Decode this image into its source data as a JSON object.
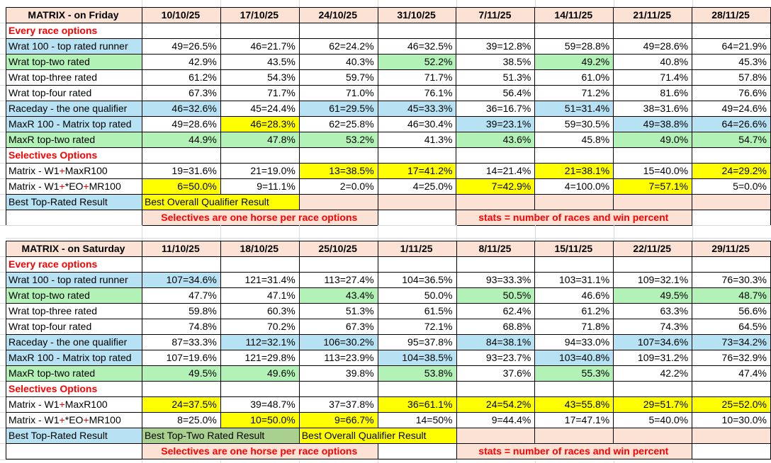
{
  "colors": {
    "peach": "#fbe2d5",
    "blue": "#b7e2f4",
    "green": "#b2f2b6",
    "dark_green": "#a9d08e",
    "yellow": "#ffff00",
    "red": "#ff0000",
    "black": "#000000",
    "gridline": "#d9d9d9"
  },
  "layout_note": "",
  "tables": [
    {
      "title": "MATRIX - on Friday",
      "dates": [
        "10/10/25",
        "17/10/25",
        "24/10/25",
        "31/10/25",
        "7/11/25",
        "14/11/25",
        "21/11/25",
        "28/11/25"
      ],
      "rows": [
        {
          "section": "Every race options"
        },
        {
          "label": "Wrat 100 - top rated runner",
          "lb": "b",
          "cells": [
            [
              "49=26.5%",
              "w"
            ],
            [
              "46=21.7%",
              "w"
            ],
            [
              "62=24.2%",
              "w"
            ],
            [
              "46=32.5%",
              "w"
            ],
            [
              "39=12.8%",
              "w"
            ],
            [
              "59=28.8%",
              "w"
            ],
            [
              "49=28.6%",
              "w"
            ],
            [
              "64=21.9%",
              "w"
            ]
          ]
        },
        {
          "label": "Wrat top-two rated",
          "lb": "g",
          "cells": [
            [
              "42.9%",
              "w"
            ],
            [
              "43.5%",
              "w"
            ],
            [
              "40.3%",
              "w"
            ],
            [
              "52.2%",
              "g"
            ],
            [
              "38.5%",
              "w"
            ],
            [
              "49.2%",
              "g"
            ],
            [
              "40.8%",
              "w"
            ],
            [
              "45.3%",
              "w"
            ]
          ]
        },
        {
          "label": "Wrat top-three rated",
          "lb": "w",
          "cells": [
            [
              "61.2%",
              "w"
            ],
            [
              "54.3%",
              "w"
            ],
            [
              "59.7%",
              "w"
            ],
            [
              "71.7%",
              "w"
            ],
            [
              "51.3%",
              "w"
            ],
            [
              "61.0%",
              "w"
            ],
            [
              "71.4%",
              "w"
            ],
            [
              "57.8%",
              "w"
            ]
          ]
        },
        {
          "label": "Wrat top-four rated",
          "lb": "w",
          "cells": [
            [
              "67.3%",
              "w"
            ],
            [
              "71.7%",
              "w"
            ],
            [
              "71.0%",
              "w"
            ],
            [
              "76.1%",
              "w"
            ],
            [
              "56.4%",
              "w"
            ],
            [
              "71.2%",
              "w"
            ],
            [
              "81.6%",
              "w"
            ],
            [
              "76.6%",
              "w"
            ]
          ]
        },
        {
          "label": "Raceday - the one qualifier",
          "lb": "b",
          "cells": [
            [
              "46=32.6%",
              "b"
            ],
            [
              "45=24.4%",
              "w"
            ],
            [
              "61=29.5%",
              "b"
            ],
            [
              "45=33.3%",
              "b"
            ],
            [
              "36=16.7%",
              "w"
            ],
            [
              "51=31.4%",
              "b"
            ],
            [
              "38=31.6%",
              "w"
            ],
            [
              "49=24.6%",
              "w"
            ]
          ]
        },
        {
          "label": "MaxR 100 - Matrix top rated",
          "lb": "b",
          "cells": [
            [
              "49=28.6%",
              "w"
            ],
            [
              "46=28.3%",
              "y"
            ],
            [
              "62=25.8%",
              "w"
            ],
            [
              "46=30.4%",
              "w"
            ],
            [
              "39=23.1%",
              "b"
            ],
            [
              "59=30.5%",
              "w"
            ],
            [
              "49=38.8%",
              "b"
            ],
            [
              "64=26.6%",
              "b"
            ]
          ]
        },
        {
          "label": "MaxR top-two rated",
          "lb": "g",
          "cells": [
            [
              "44.9%",
              "g"
            ],
            [
              "47.8%",
              "g"
            ],
            [
              "53.2%",
              "g"
            ],
            [
              "41.3%",
              "w"
            ],
            [
              "43.6%",
              "g"
            ],
            [
              "45.8%",
              "w"
            ],
            [
              "49.0%",
              "g"
            ],
            [
              "54.7%",
              "g"
            ]
          ]
        },
        {
          "section": "Selectives Options"
        },
        {
          "label": "Matrix - W1+MaxR100",
          "rp": true,
          "lb": "w",
          "cells": [
            [
              "19=31.6%",
              "w"
            ],
            [
              "21=19.0%",
              "w"
            ],
            [
              "13=38.5%",
              "y"
            ],
            [
              "17=41.2%",
              "y"
            ],
            [
              "14=21.4%",
              "w"
            ],
            [
              "21=38.1%",
              "y"
            ],
            [
              "15=40.0%",
              "w"
            ],
            [
              "24=29.2%",
              "y"
            ]
          ]
        },
        {
          "label": "Matrix - W1+*EO+MR100",
          "rp": true,
          "lb": "w",
          "cells": [
            [
              "6=50.0%",
              "y"
            ],
            [
              "9=11.1%",
              "w"
            ],
            [
              "2=0.0%",
              "w"
            ],
            [
              "4=25.0%",
              "w"
            ],
            [
              "7=42.9%",
              "y"
            ],
            [
              "4=100.0%",
              "w"
            ],
            [
              "7=57.1%",
              "y"
            ],
            [
              "5=0.0%",
              "w"
            ]
          ]
        }
      ],
      "result": {
        "label": "Best Top-Rated Result",
        "merged": [
          {
            "text": "Best Overall Qualifier Result",
            "bg": "y",
            "span": 2
          }
        ],
        "peach_cells": 6
      },
      "notes": [
        "Selectives are one horse per race options",
        "stats = number of races and win percent"
      ]
    },
    {
      "title": "MATRIX - on Saturday",
      "dates": [
        "11/10/25",
        "18/10/25",
        "25/10/25",
        "1/11/25",
        "8/11/25",
        "15/11/25",
        "22/11/25",
        "29/11/25"
      ],
      "rows": [
        {
          "section": "Every race options"
        },
        {
          "label": "Wrat 100 - top rated runner",
          "lb": "b",
          "cells": [
            [
              "107=34.6%",
              "b"
            ],
            [
              "121=31.4%",
              "w"
            ],
            [
              "113=27.4%",
              "w"
            ],
            [
              "104=36.5%",
              "w"
            ],
            [
              "93=33.3%",
              "w"
            ],
            [
              "103=31.1%",
              "w"
            ],
            [
              "109=32.1%",
              "w"
            ],
            [
              "76=30.3%",
              "w"
            ]
          ]
        },
        {
          "label": "Wrat top-two rated",
          "lb": "g",
          "cells": [
            [
              "47.7%",
              "w"
            ],
            [
              "47.1%",
              "w"
            ],
            [
              "43.4%",
              "g"
            ],
            [
              "50.0%",
              "w"
            ],
            [
              "50.5%",
              "g"
            ],
            [
              "46.6%",
              "w"
            ],
            [
              "49.5%",
              "g"
            ],
            [
              "48.7%",
              "g"
            ]
          ]
        },
        {
          "label": "Wrat top-three rated",
          "lb": "w",
          "cells": [
            [
              "59.8%",
              "w"
            ],
            [
              "60.3%",
              "w"
            ],
            [
              "51.3%",
              "w"
            ],
            [
              "61.5%",
              "w"
            ],
            [
              "62.4%",
              "w"
            ],
            [
              "61.2%",
              "w"
            ],
            [
              "63.3%",
              "w"
            ],
            [
              "56.6%",
              "w"
            ]
          ]
        },
        {
          "label": "Wrat top-four rated",
          "lb": "w",
          "cells": [
            [
              "74.8%",
              "w"
            ],
            [
              "70.2%",
              "w"
            ],
            [
              "67.3%",
              "w"
            ],
            [
              "72.1%",
              "w"
            ],
            [
              "68.8%",
              "w"
            ],
            [
              "71.8%",
              "w"
            ],
            [
              "74.3%",
              "w"
            ],
            [
              "64.5%",
              "w"
            ]
          ]
        },
        {
          "label": "Raceday - the one qualifier",
          "lb": "b",
          "cells": [
            [
              "87=33.3%",
              "w"
            ],
            [
              "112=32.1%",
              "b"
            ],
            [
              "106=30.2%",
              "b"
            ],
            [
              "95=37.8%",
              "w"
            ],
            [
              "84=38.1%",
              "b"
            ],
            [
              "94=33.0%",
              "w"
            ],
            [
              "107=34.6%",
              "b"
            ],
            [
              "73=34.2%",
              "b"
            ]
          ]
        },
        {
          "label": "MaxR 100 - Matrix top rated",
          "lb": "b",
          "cells": [
            [
              "107=19.6%",
              "w"
            ],
            [
              "121=29.8%",
              "w"
            ],
            [
              "113=23.9%",
              "w"
            ],
            [
              "104=38.5%",
              "b"
            ],
            [
              "93=23.7%",
              "w"
            ],
            [
              "103=40.8%",
              "b"
            ],
            [
              "109=31.2%",
              "w"
            ],
            [
              "76=32.9%",
              "w"
            ]
          ]
        },
        {
          "label": "MaxR top-two rated",
          "lb": "g",
          "cells": [
            [
              "49.5%",
              "g"
            ],
            [
              "49.6%",
              "g"
            ],
            [
              "39.8%",
              "w"
            ],
            [
              "53.8%",
              "g"
            ],
            [
              "37.6%",
              "w"
            ],
            [
              "55.3%",
              "g"
            ],
            [
              "42.2%",
              "w"
            ],
            [
              "47.4%",
              "w"
            ]
          ]
        },
        {
          "section": "Selectives Options"
        },
        {
          "label": "Matrix - W1+MaxR100",
          "rp": true,
          "lb": "w",
          "cells": [
            [
              "24=37.5%",
              "y"
            ],
            [
              "39=48.7%",
              "w"
            ],
            [
              "37=37.8%",
              "w"
            ],
            [
              "36=61.1%",
              "y"
            ],
            [
              "24=54.2%",
              "y"
            ],
            [
              "43=55.8%",
              "y"
            ],
            [
              "29=51.7%",
              "y"
            ],
            [
              "25=52.0%",
              "y"
            ]
          ]
        },
        {
          "label": "Matrix - W1+*EO+MR100",
          "rp": true,
          "lb": "w",
          "cells": [
            [
              "8=25.0%",
              "w"
            ],
            [
              "10=50.0%",
              "y"
            ],
            [
              "9=66.7%",
              "y"
            ],
            [
              "14=50%",
              "w"
            ],
            [
              "9=44.4%",
              "w"
            ],
            [
              "17=47.1%",
              "w"
            ],
            [
              "5=40.0%",
              "w"
            ],
            [
              "10=30.0%",
              "w"
            ]
          ]
        }
      ],
      "result": {
        "label": "Best Top-Rated Result",
        "merged": [
          {
            "text": "Best Top-Two Rated Result",
            "bg": "dg",
            "span": 2
          },
          {
            "text": "Best Overall Qualifier Result",
            "bg": "y",
            "span": 2
          }
        ],
        "peach_cells": 4
      },
      "notes": [
        "Selectives are one horse per race options",
        "stats = number of races and win percent"
      ]
    }
  ]
}
